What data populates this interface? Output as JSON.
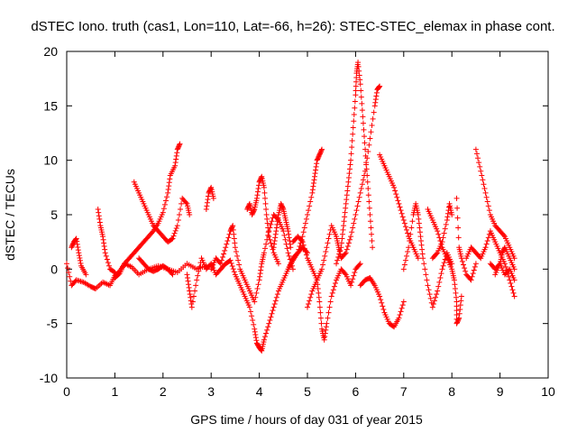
{
  "chart_data": {
    "type": "scatter",
    "title": "dSTEC Iono. truth (cas1, Lon=110, Lat=-66, h=26): STEC-STEC_elemax in phase cont.",
    "xlabel": "GPS time / hours of day 031 of year 2015",
    "ylabel": "dSTEC  / TECUs",
    "xlim": [
      0,
      10
    ],
    "ylim": [
      -10,
      20
    ],
    "xticks": [
      0,
      1,
      2,
      3,
      4,
      5,
      6,
      7,
      8,
      9,
      10
    ],
    "yticks": [
      -10,
      -5,
      0,
      5,
      10,
      15,
      20
    ],
    "grid": false,
    "marker": "+",
    "color": "#ff0000",
    "series": [
      {
        "points": [
          [
            0.0,
            0.5
          ],
          [
            0.1,
            -1.5
          ],
          [
            0.2,
            -1.0
          ],
          [
            0.35,
            -1.2
          ],
          [
            0.5,
            -1.6
          ],
          [
            0.6,
            -1.8
          ],
          [
            0.75,
            -1.2
          ],
          [
            0.9,
            -1.5
          ],
          [
            1.0,
            -0.6
          ],
          [
            1.1,
            -0.2
          ],
          [
            1.2,
            0.5
          ],
          [
            1.35,
            0.2
          ],
          [
            1.5,
            -0.5
          ],
          [
            1.7,
            0.0
          ],
          [
            1.9,
            0.3
          ],
          [
            2.1,
            0.0
          ],
          [
            2.3,
            -0.3
          ],
          [
            2.5,
            0.5
          ],
          [
            2.7,
            0.0
          ],
          [
            2.9,
            0.3
          ]
        ]
      },
      {
        "points": [
          [
            0.1,
            2.0
          ],
          [
            0.15,
            2.5
          ],
          [
            0.2,
            2.8
          ],
          [
            0.25,
            1.5
          ],
          [
            0.3,
            0.3
          ],
          [
            0.4,
            -0.5
          ]
        ]
      },
      {
        "points": [
          [
            0.65,
            5.5
          ],
          [
            0.7,
            4.0
          ],
          [
            0.75,
            3.0
          ],
          [
            0.8,
            1.5
          ],
          [
            0.9,
            0.0
          ],
          [
            1.0,
            -0.3
          ]
        ]
      },
      {
        "points": [
          [
            1.0,
            -0.8
          ],
          [
            1.1,
            -0.4
          ],
          [
            1.2,
            0.5
          ],
          [
            1.3,
            1.0
          ],
          [
            1.4,
            1.5
          ],
          [
            1.5,
            2.0
          ],
          [
            1.6,
            2.5
          ],
          [
            1.7,
            3.0
          ],
          [
            1.8,
            3.5
          ],
          [
            1.9,
            4.2
          ],
          [
            2.0,
            5.2
          ],
          [
            2.1,
            7.0
          ],
          [
            2.15,
            8.6
          ],
          [
            2.25,
            9.5
          ],
          [
            2.3,
            11.0
          ],
          [
            2.35,
            11.5
          ]
        ]
      },
      {
        "points": [
          [
            1.4,
            8.0
          ],
          [
            1.5,
            7.0
          ],
          [
            1.6,
            6.0
          ],
          [
            1.7,
            5.0
          ],
          [
            1.8,
            4.0
          ],
          [
            1.9,
            3.5
          ],
          [
            2.0,
            3.0
          ],
          [
            2.1,
            2.5
          ],
          [
            2.2,
            2.8
          ],
          [
            2.3,
            4.0
          ],
          [
            2.4,
            6.5
          ],
          [
            2.5,
            6.0
          ],
          [
            2.55,
            5.0
          ]
        ]
      },
      {
        "points": [
          [
            1.5,
            1.0
          ],
          [
            1.6,
            0.5
          ],
          [
            1.7,
            0.0
          ],
          [
            1.8,
            -0.2
          ],
          [
            1.9,
            0.0
          ],
          [
            2.0,
            0.3
          ],
          [
            2.1,
            0.0
          ],
          [
            2.2,
            -0.5
          ]
        ]
      },
      {
        "points": [
          [
            2.5,
            -0.5
          ],
          [
            2.55,
            -2.0
          ],
          [
            2.6,
            -3.5
          ],
          [
            2.7,
            -1.0
          ],
          [
            2.8,
            1.0
          ],
          [
            2.9,
            0.0
          ],
          [
            3.0,
            0.5
          ],
          [
            3.1,
            -0.5
          ],
          [
            3.2,
            0.0
          ],
          [
            3.3,
            0.5
          ],
          [
            3.4,
            0.8
          ],
          [
            3.5,
            -0.5
          ],
          [
            3.6,
            -1.5
          ],
          [
            3.7,
            -2.5
          ],
          [
            3.8,
            -3.5
          ],
          [
            3.9,
            -5.5
          ],
          [
            3.95,
            -6.8
          ],
          [
            4.0,
            -7.2
          ],
          [
            4.05,
            -7.5
          ],
          [
            4.1,
            -6.5
          ],
          [
            4.2,
            -5.0
          ],
          [
            4.3,
            -3.5
          ],
          [
            4.4,
            -2.0
          ],
          [
            4.5,
            -1.0
          ],
          [
            4.6,
            0.0
          ],
          [
            4.7,
            1.0
          ],
          [
            4.8,
            1.5
          ],
          [
            4.9,
            2.0
          ],
          [
            5.0,
            1.5
          ]
        ]
      },
      {
        "points": [
          [
            2.9,
            5.5
          ],
          [
            2.95,
            7.0
          ],
          [
            3.0,
            7.5
          ],
          [
            3.05,
            6.5
          ]
        ]
      },
      {
        "points": [
          [
            3.0,
            0.0
          ],
          [
            3.1,
            1.0
          ],
          [
            3.2,
            0.5
          ],
          [
            3.3,
            2.0
          ],
          [
            3.4,
            3.5
          ],
          [
            3.45,
            4.0
          ],
          [
            3.5,
            2.0
          ],
          [
            3.6,
            0.0
          ],
          [
            3.7,
            -1.0
          ],
          [
            3.8,
            -2.0
          ],
          [
            3.9,
            -3.0
          ],
          [
            4.0,
            -1.0
          ],
          [
            4.05,
            0.5
          ],
          [
            4.1,
            1.5
          ],
          [
            4.2,
            3.5
          ],
          [
            4.3,
            5.0
          ],
          [
            4.4,
            4.5
          ],
          [
            4.5,
            3.5
          ],
          [
            4.6,
            1.5
          ],
          [
            4.7,
            0.0
          ]
        ]
      },
      {
        "points": [
          [
            3.75,
            5.5
          ],
          [
            3.8,
            6.0
          ],
          [
            3.85,
            5.0
          ],
          [
            3.9,
            5.5
          ],
          [
            3.95,
            6.5
          ],
          [
            4.0,
            8.0
          ],
          [
            4.05,
            8.5
          ],
          [
            4.1,
            7.5
          ],
          [
            4.15,
            5.0
          ],
          [
            4.2,
            3.0
          ],
          [
            4.3,
            1.5
          ],
          [
            4.4,
            0.5
          ]
        ]
      },
      {
        "points": [
          [
            4.3,
            2.0
          ],
          [
            4.35,
            3.5
          ],
          [
            4.4,
            5.0
          ],
          [
            4.45,
            6.0
          ],
          [
            4.5,
            5.5
          ],
          [
            4.55,
            4.5
          ],
          [
            4.6,
            3.5
          ],
          [
            4.65,
            2.0
          ]
        ]
      },
      {
        "points": [
          [
            4.6,
            0.0
          ],
          [
            4.7,
            0.8
          ],
          [
            4.8,
            1.5
          ],
          [
            4.9,
            3.0
          ],
          [
            5.0,
            5.0
          ],
          [
            5.1,
            7.0
          ],
          [
            5.15,
            8.5
          ],
          [
            5.2,
            10.0
          ],
          [
            5.25,
            10.5
          ],
          [
            5.3,
            11.0
          ]
        ]
      },
      {
        "points": [
          [
            4.7,
            2.5
          ],
          [
            4.8,
            3.0
          ],
          [
            4.9,
            2.5
          ],
          [
            5.0,
            1.0
          ],
          [
            5.1,
            0.0
          ],
          [
            5.2,
            -1.0
          ],
          [
            5.25,
            -3.0
          ],
          [
            5.3,
            -5.5
          ],
          [
            5.35,
            -6.5
          ],
          [
            5.4,
            -5.0
          ],
          [
            5.5,
            -2.5
          ],
          [
            5.6,
            -1.0
          ],
          [
            5.7,
            0.0
          ],
          [
            5.8,
            -0.5
          ],
          [
            5.9,
            -1.5
          ],
          [
            6.0,
            0.0
          ],
          [
            6.1,
            0.5
          ]
        ]
      },
      {
        "points": [
          [
            5.0,
            -3.5
          ],
          [
            5.1,
            -2.0
          ],
          [
            5.2,
            -1.0
          ],
          [
            5.3,
            0.0
          ],
          [
            5.4,
            2.0
          ],
          [
            5.5,
            4.0
          ],
          [
            5.6,
            3.0
          ],
          [
            5.65,
            2.0
          ],
          [
            5.7,
            1.0
          ],
          [
            5.8,
            1.5
          ],
          [
            5.9,
            3.0
          ],
          [
            6.0,
            5.0
          ],
          [
            6.1,
            7.0
          ],
          [
            6.2,
            9.0
          ],
          [
            6.3,
            12.0
          ],
          [
            6.4,
            15.0
          ],
          [
            6.45,
            16.5
          ],
          [
            6.5,
            16.8
          ]
        ]
      },
      {
        "points": [
          [
            5.6,
            0.5
          ],
          [
            5.7,
            2.0
          ],
          [
            5.75,
            4.0
          ],
          [
            5.8,
            6.0
          ],
          [
            5.85,
            8.0
          ],
          [
            5.9,
            10.0
          ],
          [
            5.95,
            13.0
          ],
          [
            6.0,
            16.0
          ],
          [
            6.02,
            18.0
          ],
          [
            6.05,
            19.0
          ],
          [
            6.1,
            17.0
          ],
          [
            6.15,
            14.0
          ],
          [
            6.2,
            11.0
          ],
          [
            6.25,
            8.0
          ],
          [
            6.3,
            5.0
          ],
          [
            6.35,
            2.0
          ]
        ]
      },
      {
        "points": [
          [
            6.1,
            -1.5
          ],
          [
            6.2,
            -1.0
          ],
          [
            6.3,
            -0.8
          ],
          [
            6.4,
            -1.5
          ],
          [
            6.5,
            -2.5
          ],
          [
            6.6,
            -4.0
          ],
          [
            6.7,
            -5.0
          ],
          [
            6.8,
            -5.3
          ],
          [
            6.9,
            -4.5
          ],
          [
            7.0,
            -3.0
          ]
        ]
      },
      {
        "points": [
          [
            6.5,
            10.5
          ],
          [
            6.6,
            9.5
          ],
          [
            6.7,
            8.5
          ],
          [
            6.8,
            7.5
          ],
          [
            6.9,
            6.0
          ],
          [
            7.0,
            4.5
          ],
          [
            7.1,
            3.0
          ],
          [
            7.2,
            2.0
          ],
          [
            7.3,
            1.0
          ]
        ]
      },
      {
        "points": [
          [
            7.0,
            0.0
          ],
          [
            7.1,
            2.0
          ],
          [
            7.2,
            5.0
          ],
          [
            7.25,
            6.0
          ],
          [
            7.3,
            5.0
          ],
          [
            7.35,
            3.0
          ],
          [
            7.4,
            1.0
          ],
          [
            7.5,
            -1.5
          ],
          [
            7.6,
            -3.5
          ],
          [
            7.7,
            -2.0
          ],
          [
            7.8,
            0.0
          ],
          [
            7.9,
            1.5
          ],
          [
            8.0,
            0.5
          ]
        ]
      },
      {
        "points": [
          [
            7.5,
            5.5
          ],
          [
            7.6,
            4.5
          ],
          [
            7.7,
            3.5
          ],
          [
            7.8,
            2.0
          ],
          [
            7.9,
            1.0
          ],
          [
            8.0,
            0.0
          ],
          [
            8.05,
            -1.0
          ],
          [
            8.1,
            -3.0
          ],
          [
            8.1,
            -5.0
          ],
          [
            8.15,
            -4.5
          ],
          [
            8.2,
            -2.5
          ]
        ]
      },
      {
        "points": [
          [
            7.6,
            1.0
          ],
          [
            7.7,
            1.5
          ],
          [
            7.8,
            2.5
          ],
          [
            7.9,
            4.5
          ],
          [
            7.95,
            6.0
          ],
          [
            8.0,
            5.0
          ]
        ]
      },
      {
        "points": [
          [
            8.1,
            6.5
          ],
          [
            8.15,
            2.0
          ],
          [
            8.2,
            1.0
          ],
          [
            8.3,
            -0.5
          ],
          [
            8.4,
            -1.0
          ],
          [
            8.5,
            0.5
          ]
        ]
      },
      {
        "points": [
          [
            8.3,
            1.0
          ],
          [
            8.4,
            2.0
          ],
          [
            8.5,
            1.5
          ],
          [
            8.6,
            1.0
          ],
          [
            8.7,
            2.0
          ],
          [
            8.8,
            3.5
          ],
          [
            8.9,
            2.5
          ],
          [
            9.0,
            1.5
          ],
          [
            9.1,
            0.5
          ],
          [
            9.2,
            -1.0
          ],
          [
            9.3,
            -2.5
          ]
        ]
      },
      {
        "points": [
          [
            8.5,
            11.0
          ],
          [
            8.6,
            9.0
          ],
          [
            8.7,
            7.0
          ],
          [
            8.8,
            5.0
          ],
          [
            8.9,
            4.0
          ],
          [
            9.0,
            3.5
          ],
          [
            9.1,
            3.0
          ],
          [
            9.2,
            2.0
          ],
          [
            9.3,
            1.0
          ]
        ]
      },
      {
        "points": [
          [
            8.8,
            0.5
          ],
          [
            8.9,
            0.0
          ],
          [
            9.0,
            0.5
          ],
          [
            9.1,
            -0.5
          ],
          [
            9.2,
            0.0
          ],
          [
            9.3,
            -1.0
          ]
        ]
      },
      {
        "points": [
          [
            8.9,
            -0.5
          ],
          [
            9.0,
            0.5
          ],
          [
            9.05,
            1.5
          ],
          [
            9.1,
            2.0
          ],
          [
            9.2,
            1.0
          ],
          [
            9.3,
            0.0
          ]
        ]
      }
    ]
  }
}
